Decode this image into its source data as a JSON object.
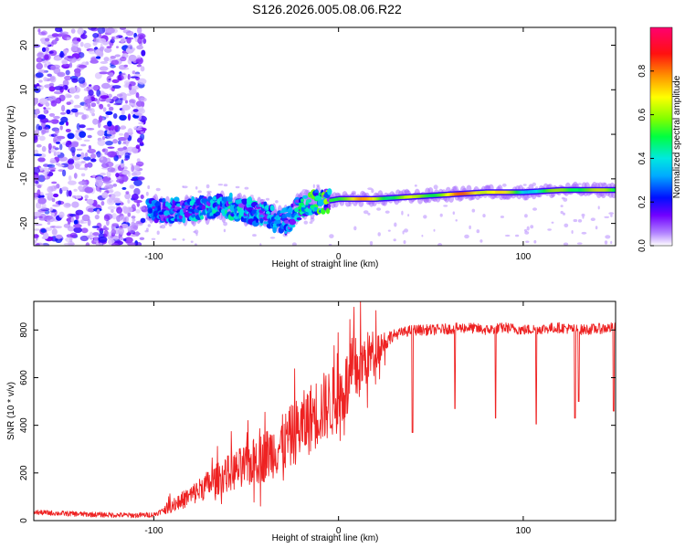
{
  "title": "S126.2026.005.08.06.R22",
  "chart_data": [
    {
      "type": "heatmap",
      "xlabel": "Height of straight line (km)",
      "ylabel": "Frequency (Hz)",
      "xlim": [
        -165,
        150
      ],
      "ylim": [
        -25,
        24
      ],
      "x_ticks": [
        -100,
        0,
        100
      ],
      "y_ticks": [
        -20,
        -10,
        0,
        10,
        20
      ],
      "colorbar": {
        "label": "Normalized spectral amplitude",
        "range": [
          0,
          1
        ],
        "ticks": [
          0.0,
          0.2,
          0.4,
          0.6,
          0.8
        ],
        "colormap": [
          "#ffffff",
          "#7000ff",
          "#0000ff",
          "#00c8ff",
          "#00ff60",
          "#ffff00",
          "#ff8000",
          "#ff0000",
          "#ff0070"
        ]
      },
      "ridge": {
        "x": [
          -100,
          -80,
          -60,
          -40,
          -30,
          -20,
          0,
          20,
          40,
          60,
          80,
          100,
          120,
          150
        ],
        "frequency": [
          -17,
          -17,
          -16,
          -18,
          -20,
          -16,
          -14.5,
          -14.5,
          -14,
          -13.5,
          -13,
          -13,
          -12.5,
          -12.5
        ],
        "amplitude": [
          0.3,
          0.35,
          0.4,
          0.35,
          0.3,
          0.45,
          0.7,
          0.9,
          0.85,
          0.8,
          0.9,
          0.7,
          0.75,
          0.6
        ]
      },
      "noise_region": [
        -165,
        -105
      ]
    },
    {
      "type": "line",
      "xlabel": "Height of straight line (km)",
      "ylabel": "SNR (10 * v/v)",
      "xlim": [
        -165,
        150
      ],
      "ylim": [
        0,
        920
      ],
      "x_ticks": [
        -100,
        0,
        100
      ],
      "y_ticks": [
        0,
        200,
        400,
        600,
        800
      ],
      "color": "#ee2222",
      "series": [
        {
          "x": [
            -165,
            -150,
            -130,
            -110,
            -100,
            -90,
            -80,
            -70,
            -60,
            -50,
            -40,
            -30,
            -20,
            -10,
            0,
            10,
            20,
            30,
            40,
            50,
            60,
            70,
            80,
            90,
            100,
            110,
            120,
            130,
            140,
            150
          ],
          "values": [
            35,
            30,
            25,
            22,
            25,
            60,
            100,
            150,
            190,
            220,
            260,
            310,
            380,
            450,
            500,
            620,
            710,
            780,
            800,
            800,
            805,
            810,
            800,
            810,
            800,
            805,
            810,
            800,
            805,
            810
          ]
        }
      ],
      "dips": [
        {
          "x": 40,
          "y": 370
        },
        {
          "x": 63,
          "y": 470
        },
        {
          "x": 85,
          "y": 430
        },
        {
          "x": 107,
          "y": 405
        },
        {
          "x": 128,
          "y": 430
        },
        {
          "x": 130,
          "y": 500
        },
        {
          "x": 149,
          "y": 460
        }
      ]
    }
  ]
}
